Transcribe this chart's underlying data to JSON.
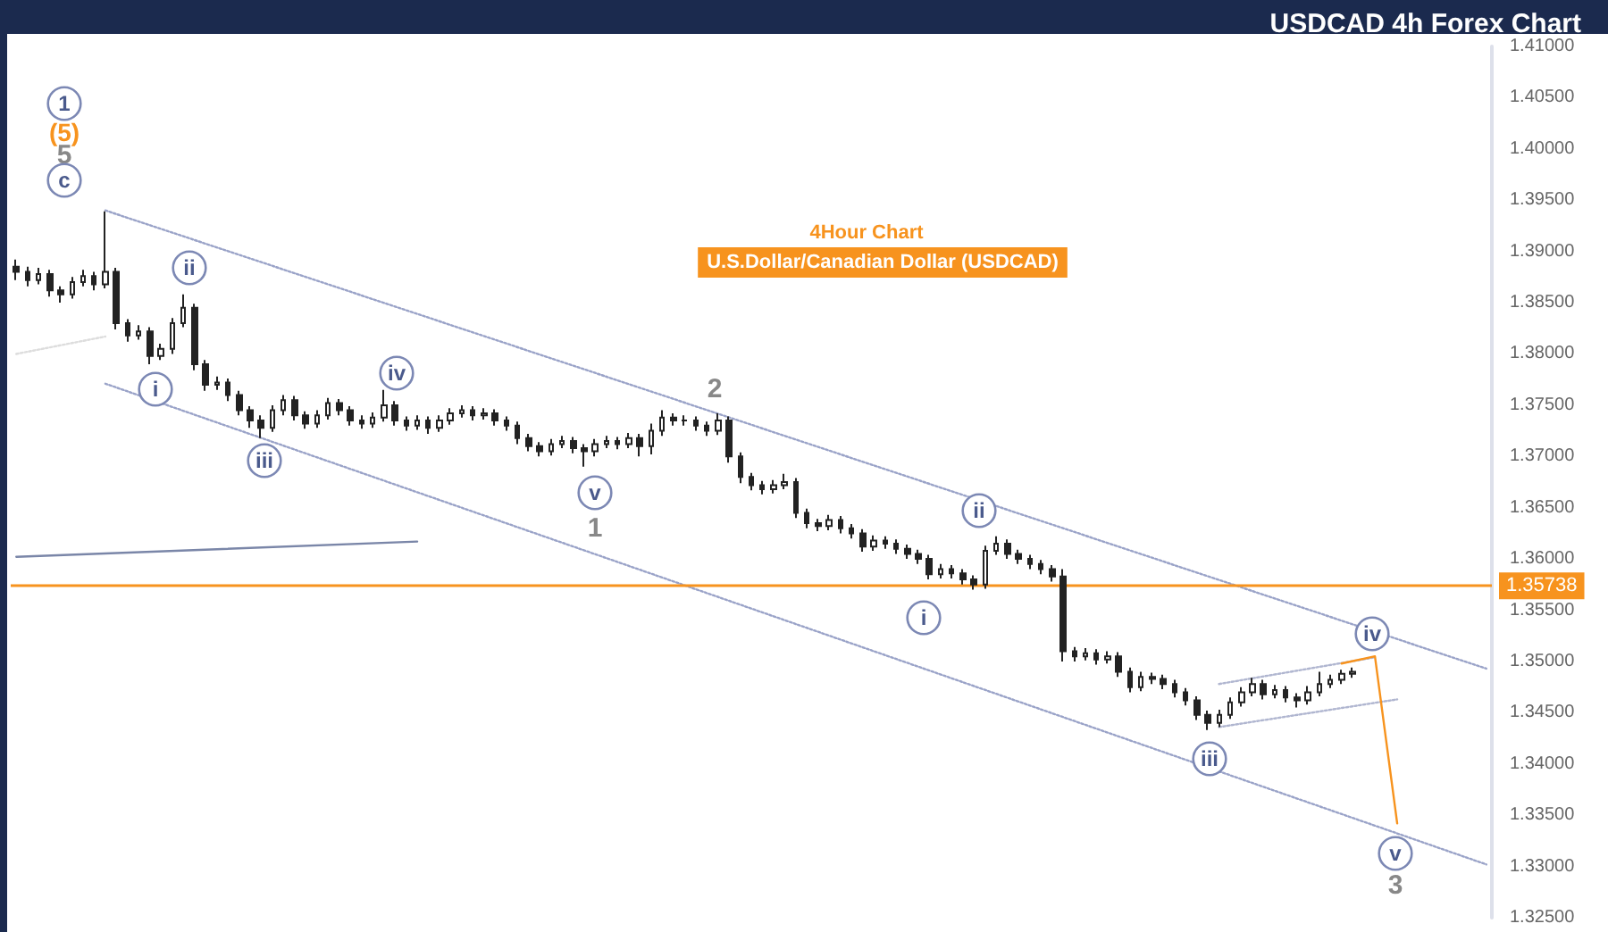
{
  "chart_data": {
    "type": "candlestick",
    "title": "USDCAD 4h Forex Chart",
    "subtitle": "4Hour Chart",
    "annotations": [
      "1",
      "(5)",
      "5",
      "c",
      "ii",
      "i",
      "iii",
      "iv",
      "v",
      "1",
      "2",
      "ii",
      "i",
      "iii",
      "iv",
      "v",
      "3",
      "U.S.Dollar/Canadian Dollar (USDCAD)"
    ],
    "categories": [
      null,
      null,
      null,
      null,
      null,
      null,
      null,
      null,
      null,
      null,
      null,
      null,
      null,
      null,
      null,
      null,
      null,
      null,
      null,
      null,
      null,
      null,
      null,
      null,
      null,
      null,
      null,
      null,
      null,
      null,
      null,
      null,
      null,
      null,
      null,
      null,
      null,
      null,
      null,
      null,
      null,
      null,
      null,
      null,
      null,
      null,
      null,
      null,
      null,
      null,
      null,
      null,
      null,
      null,
      null,
      null,
      null,
      null,
      null,
      null,
      null,
      null,
      null,
      null,
      null,
      null,
      null,
      null,
      null,
      null,
      null,
      null,
      null,
      null,
      null,
      null,
      null,
      null,
      null,
      null,
      null,
      null,
      null,
      null,
      null,
      null,
      null,
      null,
      null,
      null,
      null,
      null,
      null,
      null,
      null,
      null,
      null,
      null,
      null,
      null,
      null,
      null,
      null,
      null,
      null,
      null,
      null,
      null,
      null,
      null,
      null,
      null,
      null,
      null,
      null,
      null,
      null,
      null,
      null,
      null,
      null,
      null,
      null,
      null,
      null,
      null,
      null,
      null,
      null,
      null,
      null,
      null,
      null
    ],
    "color": "#222222",
    "ohlc": [
      [
        1.3885,
        1.3892,
        1.3872,
        1.388
      ],
      [
        1.388,
        1.3885,
        1.3866,
        1.3872
      ],
      [
        1.3872,
        1.3884,
        1.3868,
        1.3878
      ],
      [
        1.3878,
        1.3882,
        1.3856,
        1.3862
      ],
      [
        1.3862,
        1.3866,
        1.385,
        1.3858
      ],
      [
        1.3858,
        1.3875,
        1.3854,
        1.387
      ],
      [
        1.387,
        1.3882,
        1.3866,
        1.3876
      ],
      [
        1.3876,
        1.388,
        1.3862,
        1.3868
      ],
      [
        1.3868,
        1.3939,
        1.3864,
        1.388
      ],
      [
        1.388,
        1.3884,
        1.3824,
        1.383
      ],
      [
        1.383,
        1.3834,
        1.3812,
        1.3818
      ],
      [
        1.3818,
        1.3828,
        1.3814,
        1.3822
      ],
      [
        1.3822,
        1.3826,
        1.379,
        1.3798
      ],
      [
        1.3798,
        1.381,
        1.3794,
        1.3805
      ],
      [
        1.3805,
        1.3835,
        1.38,
        1.383
      ],
      [
        1.383,
        1.3858,
        1.3826,
        1.3845
      ],
      [
        1.3845,
        1.3849,
        1.3784,
        1.379
      ],
      [
        1.379,
        1.3794,
        1.3764,
        1.377
      ],
      [
        1.377,
        1.3778,
        1.3765,
        1.3772
      ],
      [
        1.3772,
        1.3776,
        1.3754,
        1.376
      ],
      [
        1.376,
        1.3764,
        1.374,
        1.3745
      ],
      [
        1.3745,
        1.3749,
        1.3728,
        1.3735
      ],
      [
        1.3735,
        1.374,
        1.3718,
        1.3728
      ],
      [
        1.3728,
        1.375,
        1.3724,
        1.3745
      ],
      [
        1.3745,
        1.376,
        1.374,
        1.3755
      ],
      [
        1.3755,
        1.3759,
        1.3735,
        1.374
      ],
      [
        1.374,
        1.3744,
        1.3727,
        1.3732
      ],
      [
        1.3732,
        1.3745,
        1.3728,
        1.374
      ],
      [
        1.374,
        1.3757,
        1.3736,
        1.3752
      ],
      [
        1.3752,
        1.3756,
        1.374,
        1.3745
      ],
      [
        1.3745,
        1.3749,
        1.373,
        1.3735
      ],
      [
        1.3735,
        1.374,
        1.3727,
        1.3732
      ],
      [
        1.3732,
        1.3743,
        1.3728,
        1.3738
      ],
      [
        1.3738,
        1.3765,
        1.3734,
        1.375
      ],
      [
        1.375,
        1.3754,
        1.373,
        1.3735
      ],
      [
        1.3735,
        1.3739,
        1.3725,
        1.373
      ],
      [
        1.373,
        1.374,
        1.3726,
        1.3735
      ],
      [
        1.3735,
        1.3739,
        1.3722,
        1.3728
      ],
      [
        1.3728,
        1.374,
        1.3724,
        1.3735
      ],
      [
        1.3735,
        1.3747,
        1.3731,
        1.3742
      ],
      [
        1.3742,
        1.375,
        1.3738,
        1.3745
      ],
      [
        1.3745,
        1.3749,
        1.3735,
        1.374
      ],
      [
        1.374,
        1.3747,
        1.3736,
        1.3742
      ],
      [
        1.3742,
        1.3746,
        1.373,
        1.3735
      ],
      [
        1.3735,
        1.3739,
        1.3725,
        1.373
      ],
      [
        1.373,
        1.3734,
        1.3712,
        1.3718
      ],
      [
        1.3718,
        1.3722,
        1.3705,
        1.371
      ],
      [
        1.371,
        1.3714,
        1.37,
        1.3705
      ],
      [
        1.3705,
        1.3717,
        1.3701,
        1.3712
      ],
      [
        1.3712,
        1.372,
        1.3708,
        1.3715
      ],
      [
        1.3715,
        1.3719,
        1.3703,
        1.3708
      ],
      [
        1.3708,
        1.3712,
        1.369,
        1.3705
      ],
      [
        1.3705,
        1.3717,
        1.37,
        1.3712
      ],
      [
        1.3712,
        1.372,
        1.3708,
        1.3715
      ],
      [
        1.3715,
        1.3719,
        1.3707,
        1.3712
      ],
      [
        1.3712,
        1.3723,
        1.3708,
        1.3718
      ],
      [
        1.3718,
        1.3722,
        1.37,
        1.371
      ],
      [
        1.371,
        1.3732,
        1.3702,
        1.3725
      ],
      [
        1.3725,
        1.3745,
        1.372,
        1.3738
      ],
      [
        1.3738,
        1.3742,
        1.373,
        1.3735
      ],
      [
        1.3735,
        1.374,
        1.373,
        1.3735
      ],
      [
        1.3735,
        1.3739,
        1.3725,
        1.373
      ],
      [
        1.373,
        1.3734,
        1.372,
        1.3725
      ],
      [
        1.3725,
        1.3742,
        1.3721,
        1.3735
      ],
      [
        1.3735,
        1.3739,
        1.3694,
        1.37
      ],
      [
        1.37,
        1.3704,
        1.3674,
        1.368
      ],
      [
        1.368,
        1.3684,
        1.3667,
        1.3672
      ],
      [
        1.3672,
        1.3676,
        1.3663,
        1.3668
      ],
      [
        1.3668,
        1.3677,
        1.3664,
        1.3672
      ],
      [
        1.3672,
        1.3683,
        1.3668,
        1.3675
      ],
      [
        1.3675,
        1.3679,
        1.364,
        1.3645
      ],
      [
        1.3645,
        1.3649,
        1.363,
        1.3635
      ],
      [
        1.3635,
        1.3639,
        1.3627,
        1.3632
      ],
      [
        1.3632,
        1.3643,
        1.3628,
        1.3638
      ],
      [
        1.3638,
        1.3642,
        1.3625,
        1.363
      ],
      [
        1.363,
        1.3634,
        1.362,
        1.3625
      ],
      [
        1.3625,
        1.3629,
        1.3607,
        1.3612
      ],
      [
        1.3612,
        1.3623,
        1.3608,
        1.3618
      ],
      [
        1.3618,
        1.3622,
        1.361,
        1.3615
      ],
      [
        1.3615,
        1.3619,
        1.3605,
        1.361
      ],
      [
        1.361,
        1.3614,
        1.36,
        1.3605
      ],
      [
        1.3605,
        1.3609,
        1.3595,
        1.36
      ],
      [
        1.36,
        1.3604,
        1.358,
        1.3585
      ],
      [
        1.3585,
        1.3595,
        1.3581,
        1.359
      ],
      [
        1.359,
        1.3594,
        1.3581,
        1.3586
      ],
      [
        1.3586,
        1.359,
        1.3575,
        1.358
      ],
      [
        1.358,
        1.3584,
        1.357,
        1.3575
      ],
      [
        1.3575,
        1.3613,
        1.3571,
        1.3608
      ],
      [
        1.3608,
        1.3622,
        1.3604,
        1.3615
      ],
      [
        1.3615,
        1.3619,
        1.36,
        1.3605
      ],
      [
        1.3605,
        1.3609,
        1.3595,
        1.36
      ],
      [
        1.36,
        1.3604,
        1.359,
        1.3595
      ],
      [
        1.3595,
        1.3599,
        1.3585,
        1.359
      ],
      [
        1.359,
        1.3594,
        1.3578,
        1.3583
      ],
      [
        1.3583,
        1.359,
        1.35,
        1.351
      ],
      [
        1.351,
        1.3514,
        1.35,
        1.3505
      ],
      [
        1.3505,
        1.3513,
        1.3501,
        1.3508
      ],
      [
        1.3508,
        1.3512,
        1.3497,
        1.3502
      ],
      [
        1.3502,
        1.351,
        1.3498,
        1.3505
      ],
      [
        1.3505,
        1.3509,
        1.3485,
        1.349
      ],
      [
        1.349,
        1.3494,
        1.347,
        1.3475
      ],
      [
        1.3475,
        1.349,
        1.3471,
        1.3485
      ],
      [
        1.3485,
        1.3489,
        1.3478,
        1.3483
      ],
      [
        1.3483,
        1.3487,
        1.3473,
        1.3478
      ],
      [
        1.3478,
        1.3482,
        1.3465,
        1.347
      ],
      [
        1.347,
        1.3474,
        1.3457,
        1.3462
      ],
      [
        1.3462,
        1.3466,
        1.3443,
        1.3448
      ],
      [
        1.3448,
        1.3452,
        1.3433,
        1.344
      ],
      [
        1.344,
        1.3453,
        1.3436,
        1.3448
      ],
      [
        1.3448,
        1.3465,
        1.3444,
        1.346
      ],
      [
        1.346,
        1.3475,
        1.3456,
        1.347
      ],
      [
        1.347,
        1.3484,
        1.3466,
        1.3478
      ],
      [
        1.3478,
        1.3482,
        1.3463,
        1.3468
      ],
      [
        1.3468,
        1.3477,
        1.3464,
        1.3472
      ],
      [
        1.3472,
        1.3476,
        1.346,
        1.3465
      ],
      [
        1.3465,
        1.3469,
        1.3455,
        1.3462
      ],
      [
        1.3462,
        1.3476,
        1.3458,
        1.347
      ],
      [
        1.347,
        1.349,
        1.3466,
        1.3478
      ],
      [
        1.3478,
        1.3487,
        1.3474,
        1.3482
      ],
      [
        1.3482,
        1.3492,
        1.3478,
        1.3488
      ],
      [
        1.3488,
        1.3494,
        1.3484,
        1.349
      ],
      null,
      null,
      null,
      null,
      null,
      null,
      null,
      null,
      null,
      null,
      null,
      null
    ],
    "series": [
      {
        "type": "line",
        "color": "#9aa3c8",
        "line_style": "dotted",
        "values": [
          null,
          null,
          null,
          null,
          null,
          null,
          null,
          null,
          1.394,
          null,
          null,
          null,
          null,
          null,
          null,
          null,
          null,
          null,
          null,
          null,
          null,
          null,
          null,
          null,
          null,
          null,
          null,
          null,
          null,
          null,
          null,
          null,
          null,
          null,
          null,
          null,
          null,
          null,
          null,
          null,
          null,
          null,
          null,
          null,
          null,
          null,
          null,
          null,
          null,
          null,
          null,
          null,
          null,
          null,
          null,
          null,
          null,
          null,
          null,
          null,
          null,
          null,
          null,
          null,
          null,
          null,
          null,
          null,
          null,
          null,
          null,
          null,
          null,
          null,
          null,
          null,
          null,
          null,
          null,
          null,
          null,
          null,
          null,
          null,
          null,
          null,
          null,
          null,
          null,
          null,
          null,
          null,
          null,
          null,
          null,
          null,
          null,
          null,
          null,
          null,
          null,
          null,
          null,
          null,
          null,
          null,
          null,
          null,
          null,
          null,
          null,
          null,
          null,
          null,
          null,
          null,
          null,
          null,
          null,
          null,
          null,
          null,
          null,
          null,
          null,
          null,
          null,
          null,
          null,
          null,
          null,
          null,
          1.3493
        ]
      },
      {
        "type": "line",
        "color": "#9aa3c8",
        "line_style": "dotted",
        "values": [
          null,
          null,
          null,
          null,
          null,
          null,
          null,
          null,
          1.3771,
          null,
          null,
          null,
          null,
          null,
          null,
          null,
          null,
          null,
          null,
          null,
          null,
          null,
          null,
          null,
          null,
          null,
          null,
          null,
          null,
          null,
          null,
          null,
          null,
          null,
          null,
          null,
          null,
          null,
          null,
          null,
          null,
          null,
          null,
          null,
          null,
          null,
          null,
          null,
          null,
          null,
          null,
          null,
          null,
          null,
          null,
          null,
          null,
          null,
          null,
          null,
          null,
          null,
          null,
          null,
          null,
          null,
          null,
          null,
          null,
          null,
          null,
          null,
          null,
          null,
          null,
          null,
          null,
          null,
          null,
          null,
          null,
          null,
          null,
          null,
          null,
          null,
          null,
          null,
          null,
          null,
          null,
          null,
          null,
          null,
          null,
          null,
          null,
          null,
          null,
          null,
          null,
          null,
          null,
          null,
          null,
          null,
          null,
          null,
          null,
          null,
          null,
          null,
          null,
          null,
          null,
          null,
          null,
          null,
          null,
          null,
          null,
          null,
          null,
          null,
          null,
          null,
          null,
          null,
          null,
          null,
          null,
          null,
          1.3302
        ]
      },
      {
        "type": "line",
        "color": "#dddddd",
        "line_style": "dotted",
        "values": [
          1.38,
          null,
          null,
          null,
          null,
          null,
          null,
          null,
          1.3817,
          null,
          null,
          null,
          null,
          null,
          null,
          null,
          null,
          null,
          null,
          null,
          null,
          null,
          null,
          null,
          null,
          null,
          null,
          null,
          null,
          null,
          null,
          null,
          null,
          null,
          null,
          null,
          null,
          null,
          null,
          null,
          null,
          null,
          null,
          null,
          null,
          null,
          null,
          null,
          null,
          null,
          null,
          null,
          null,
          null,
          null,
          null,
          null,
          null,
          null,
          null,
          null,
          null,
          null,
          null,
          null,
          null,
          null,
          null,
          null,
          null,
          null,
          null,
          null,
          null,
          null,
          null,
          null,
          null,
          null,
          null,
          null,
          null,
          null,
          null,
          null,
          null,
          null,
          null,
          null,
          null,
          null,
          null,
          null,
          null,
          null,
          null,
          null,
          null,
          null,
          null,
          null,
          null,
          null,
          null,
          null,
          null,
          null,
          null,
          null,
          null,
          null,
          null,
          null,
          null,
          null,
          null,
          null,
          null,
          null,
          null,
          null,
          null,
          null,
          null,
          null,
          null,
          null,
          null,
          null,
          null,
          null,
          null,
          null
        ]
      },
      {
        "type": "line",
        "color": "#7a86a8",
        "line_style": "solid",
        "values": [
          1.3602,
          null,
          null,
          null,
          null,
          null,
          null,
          null,
          null,
          null,
          null,
          null,
          null,
          null,
          null,
          null,
          null,
          null,
          null,
          null,
          null,
          null,
          null,
          null,
          null,
          null,
          null,
          null,
          null,
          null,
          null,
          null,
          null,
          null,
          null,
          null,
          1.3617,
          null,
          null,
          null,
          null,
          null,
          null,
          null,
          null,
          null,
          null,
          null,
          null,
          null,
          null,
          null,
          null,
          null,
          null,
          null,
          null,
          null,
          null,
          null,
          null,
          null,
          null,
          null,
          null,
          null,
          null,
          null,
          null,
          null,
          null,
          null,
          null,
          null,
          null,
          null,
          null,
          null,
          null,
          null,
          null,
          null,
          null,
          null,
          null,
          null,
          null,
          null,
          null,
          null,
          null,
          null,
          null,
          null,
          null,
          null,
          null,
          null,
          null,
          null,
          null,
          null,
          null,
          null,
          null,
          null,
          null,
          null,
          null,
          null,
          null,
          null,
          null,
          null,
          null,
          null,
          null,
          null,
          null,
          null,
          null,
          null,
          null,
          null,
          null,
          null,
          null,
          null,
          null,
          null,
          null,
          null,
          null
        ]
      },
      {
        "type": "line",
        "color": "#b0b6d0",
        "line_style": "dotted",
        "values": [
          null,
          null,
          null,
          null,
          null,
          null,
          null,
          null,
          null,
          null,
          null,
          null,
          null,
          null,
          null,
          null,
          null,
          null,
          null,
          null,
          null,
          null,
          null,
          null,
          null,
          null,
          null,
          null,
          null,
          null,
          null,
          null,
          null,
          null,
          null,
          null,
          null,
          null,
          null,
          null,
          null,
          null,
          null,
          null,
          null,
          null,
          null,
          null,
          null,
          null,
          null,
          null,
          null,
          null,
          null,
          null,
          null,
          null,
          null,
          null,
          null,
          null,
          null,
          null,
          null,
          null,
          null,
          null,
          null,
          null,
          null,
          null,
          null,
          null,
          null,
          null,
          null,
          null,
          null,
          null,
          null,
          null,
          null,
          null,
          null,
          null,
          null,
          null,
          null,
          null,
          null,
          null,
          null,
          null,
          null,
          null,
          null,
          null,
          null,
          null,
          null,
          null,
          null,
          null,
          null,
          null,
          null,
          null,
          1.3478,
          null,
          null,
          null,
          null,
          null,
          null,
          null,
          null,
          null,
          null,
          null,
          null,
          null,
          1.3504,
          null,
          null,
          null,
          null,
          null,
          null,
          null,
          null,
          null,
          null
        ]
      },
      {
        "type": "line",
        "color": "#b0b6d0",
        "line_style": "dotted",
        "values": [
          null,
          null,
          null,
          null,
          null,
          null,
          null,
          null,
          null,
          null,
          null,
          null,
          null,
          null,
          null,
          null,
          null,
          null,
          null,
          null,
          null,
          null,
          null,
          null,
          null,
          null,
          null,
          null,
          null,
          null,
          null,
          null,
          null,
          null,
          null,
          null,
          null,
          null,
          null,
          null,
          null,
          null,
          null,
          null,
          null,
          null,
          null,
          null,
          null,
          null,
          null,
          null,
          null,
          null,
          null,
          null,
          null,
          null,
          null,
          null,
          null,
          null,
          null,
          null,
          null,
          null,
          null,
          null,
          null,
          null,
          null,
          null,
          null,
          null,
          null,
          null,
          null,
          null,
          null,
          null,
          null,
          null,
          null,
          null,
          null,
          null,
          null,
          null,
          null,
          null,
          null,
          null,
          null,
          null,
          null,
          null,
          null,
          null,
          null,
          null,
          null,
          null,
          null,
          null,
          null,
          null,
          null,
          null,
          1.3436,
          null,
          null,
          null,
          null,
          null,
          null,
          null,
          null,
          null,
          null,
          null,
          null,
          null,
          null,
          null,
          1.3463,
          null,
          null,
          null,
          null,
          null,
          null,
          null,
          null
        ]
      },
      {
        "type": "line",
        "color": "#f7931e",
        "line_style": "solid",
        "values": [
          null,
          null,
          null,
          null,
          null,
          null,
          null,
          null,
          null,
          null,
          null,
          null,
          null,
          null,
          null,
          null,
          null,
          null,
          null,
          null,
          null,
          null,
          null,
          null,
          null,
          null,
          null,
          null,
          null,
          null,
          null,
          null,
          null,
          null,
          null,
          null,
          null,
          null,
          null,
          null,
          null,
          null,
          null,
          null,
          null,
          null,
          null,
          null,
          null,
          null,
          null,
          null,
          null,
          null,
          null,
          null,
          null,
          null,
          null,
          null,
          null,
          null,
          null,
          null,
          null,
          null,
          null,
          null,
          null,
          null,
          null,
          null,
          null,
          null,
          null,
          null,
          null,
          null,
          null,
          null,
          null,
          null,
          null,
          null,
          null,
          null,
          null,
          null,
          null,
          null,
          null,
          null,
          null,
          null,
          null,
          null,
          null,
          null,
          null,
          null,
          null,
          null,
          null,
          null,
          null,
          null,
          null,
          null,
          null,
          null,
          null,
          null,
          null,
          null,
          null,
          null,
          null,
          null,
          null,
          1.3498,
          null,
          null,
          1.3505,
          null,
          1.3342,
          null,
          null,
          null,
          null,
          null,
          null,
          null,
          null
        ]
      }
    ],
    "ref_lines": [
      {
        "axis": "y",
        "value": 1.35738,
        "label": "1.35738",
        "color": "#f7931e"
      }
    ],
    "ylim": [
      1.325,
      1.41
    ],
    "yticks": [
      {
        "value": 1.325,
        "label": "1.32500"
      },
      {
        "value": 1.33,
        "label": "1.33000"
      },
      {
        "value": 1.335,
        "label": "1.33500"
      },
      {
        "value": 1.34,
        "label": "1.34000"
      },
      {
        "value": 1.345,
        "label": "1.34500"
      },
      {
        "value": 1.35,
        "label": "1.35000"
      },
      {
        "value": 1.355,
        "label": "1.35500"
      },
      {
        "value": 1.36,
        "label": "1.36000"
      },
      {
        "value": 1.365,
        "label": "1.36500"
      },
      {
        "value": 1.37,
        "label": "1.37000"
      },
      {
        "value": 1.375,
        "label": "1.37500"
      },
      {
        "value": 1.38,
        "label": "1.38000"
      },
      {
        "value": 1.385,
        "label": "1.38500"
      },
      {
        "value": 1.39,
        "label": "1.39000"
      },
      {
        "value": 1.395,
        "label": "1.39500"
      },
      {
        "value": 1.4,
        "label": "1.40000"
      },
      {
        "value": 1.405,
        "label": "1.40500"
      },
      {
        "value": 1.41,
        "label": "1.41000"
      }
    ],
    "tick_labels": "y"
  }
}
